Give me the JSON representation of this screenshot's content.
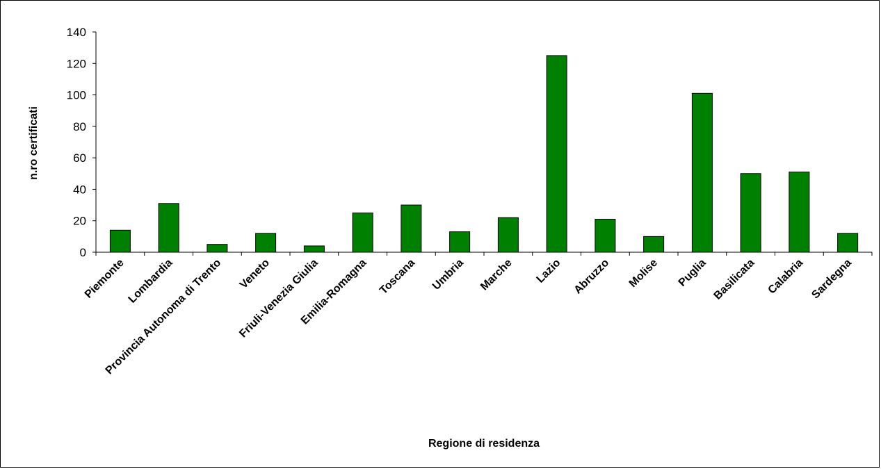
{
  "chart_data": {
    "type": "bar",
    "title": "",
    "xlabel": "Regione di residenza",
    "ylabel": "n.ro certificati",
    "ylim": [
      0,
      140
    ],
    "yticks": [
      0,
      20,
      40,
      60,
      80,
      100,
      120,
      140
    ],
    "grid": false,
    "legend": "none",
    "bar_color": "#008000",
    "categories": [
      "Piemonte",
      "Lombardia",
      "Provincia Autonoma di Trento",
      "Veneto",
      "Friuli-Venezia Giulia",
      "Emilia-Romagna",
      "Toscana",
      "Umbria",
      "Marche",
      "Lazio",
      "Abruzzo",
      "Molise",
      "Puglia",
      "Basilicata",
      "Calabria",
      "Sardegna"
    ],
    "values": [
      14,
      31,
      5,
      12,
      4,
      25,
      30,
      13,
      22,
      125,
      21,
      10,
      101,
      50,
      51,
      12
    ]
  }
}
